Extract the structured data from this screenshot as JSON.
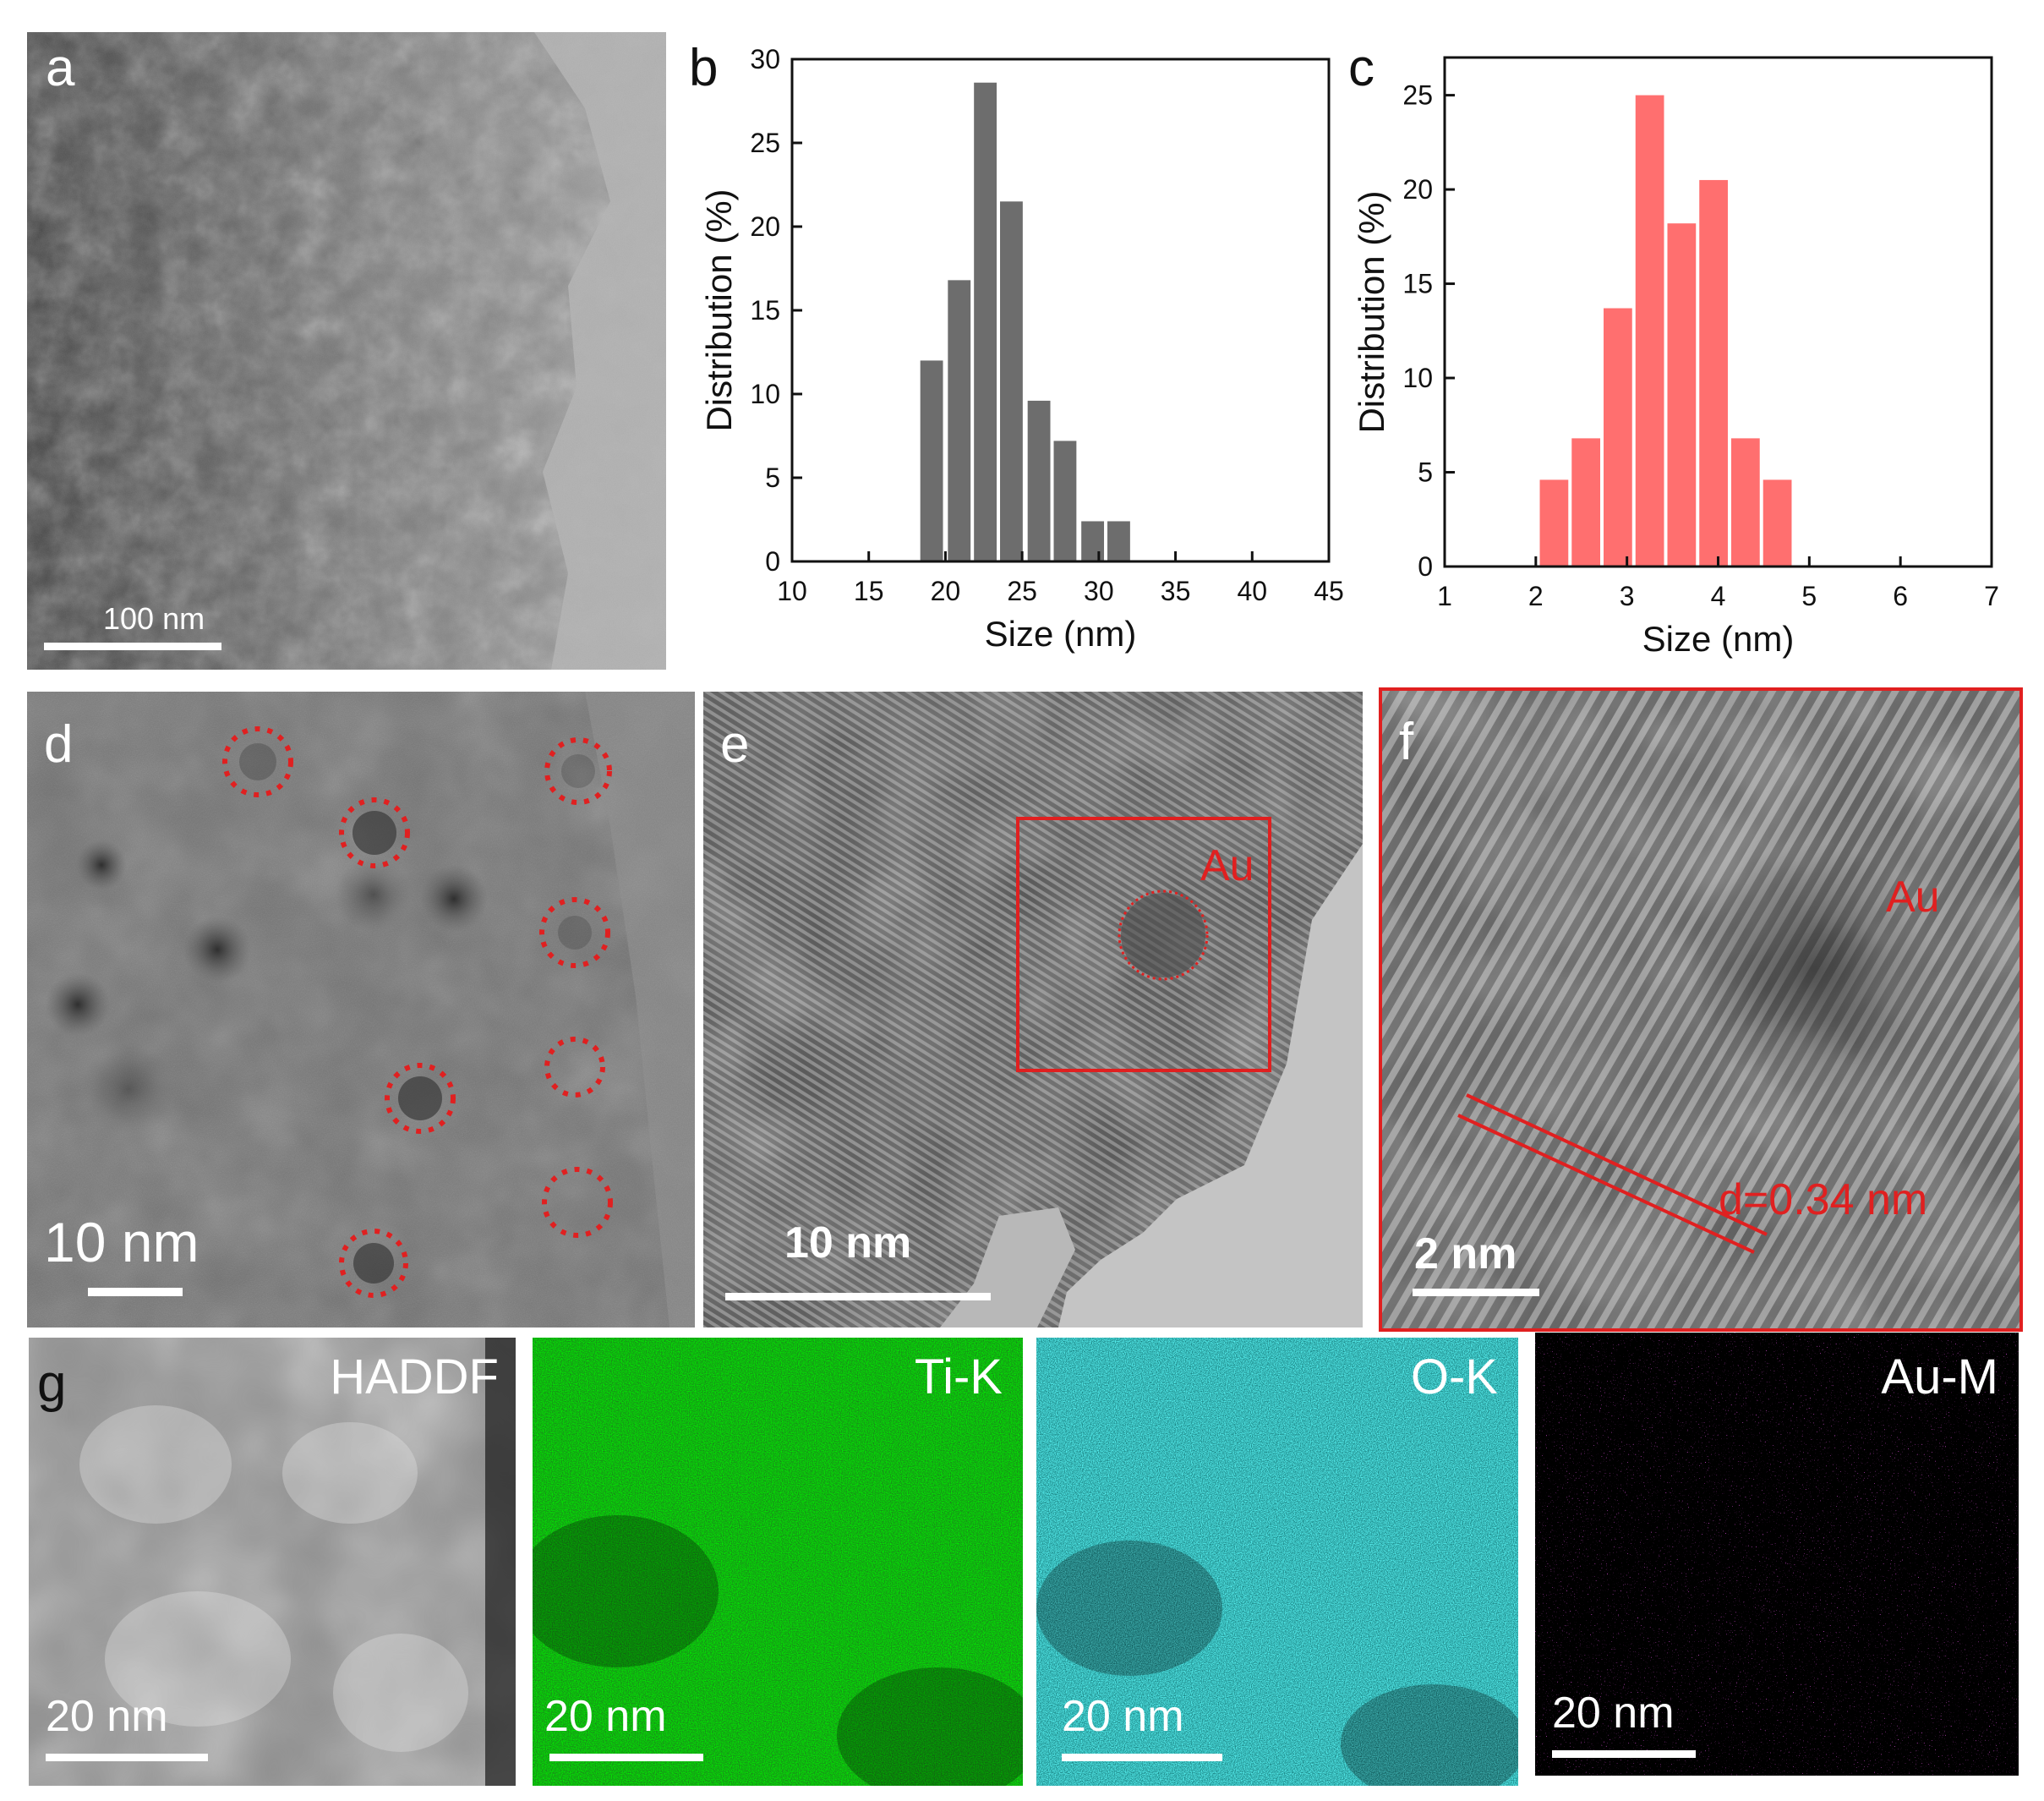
{
  "panel_a": {
    "letter": "a",
    "scale_label": "100 nm"
  },
  "panel_b": {
    "letter": "b"
  },
  "panel_c": {
    "letter": "c"
  },
  "panel_d": {
    "letter": "d",
    "scale_label": "10 nm"
  },
  "panel_e": {
    "letter": "e",
    "scale_label": "10 nm",
    "au_label": "Au"
  },
  "panel_f": {
    "letter": "f",
    "scale_label": "2 nm",
    "au_label": "Au",
    "d_label": "d=0.34 nm"
  },
  "panel_g": {
    "letter": "g",
    "maps": [
      {
        "label": "HADDF",
        "scale_label": "20 nm"
      },
      {
        "label": "Ti-K",
        "scale_label": "20 nm"
      },
      {
        "label": "O-K",
        "scale_label": "20 nm"
      },
      {
        "label": "Au-M",
        "scale_label": "20 nm"
      }
    ]
  },
  "colors": {
    "hist_b": "#6d6d6d",
    "hist_c": "#ff6f6f",
    "ti": "#1fbf1f",
    "o": "#19e0e0",
    "au": "#e01ee0",
    "red": "#e02020"
  },
  "chart_data": [
    {
      "type": "bar",
      "panel": "b",
      "xlabel": "Size (nm)",
      "ylabel": "Distribution (%)",
      "xlim": [
        10,
        45
      ],
      "ylim": [
        0,
        30
      ],
      "xticks": [
        10,
        15,
        20,
        25,
        30,
        35,
        40,
        45
      ],
      "yticks": [
        0,
        5,
        10,
        15,
        20,
        25,
        30
      ],
      "bin_width": 1.7,
      "x": [
        19.1,
        20.9,
        22.6,
        24.3,
        26.1,
        27.8,
        29.6,
        31.3,
        33.1
      ],
      "values": [
        12.0,
        16.8,
        28.6,
        21.5,
        9.6,
        7.2,
        2.4,
        2.4,
        0
      ],
      "grid": false,
      "legend": "none"
    },
    {
      "type": "bar",
      "panel": "c",
      "xlabel": "Size (nm)",
      "ylabel": "Distribution (%)",
      "xlim": [
        1,
        7
      ],
      "ylim": [
        0,
        27
      ],
      "xticks": [
        1,
        2,
        3,
        4,
        5,
        6,
        7
      ],
      "yticks": [
        0,
        5,
        10,
        15,
        20,
        25
      ],
      "bin_width": 0.35,
      "x": [
        2.2,
        2.55,
        2.9,
        3.25,
        3.6,
        3.95,
        4.3,
        4.65,
        5.0
      ],
      "values": [
        4.6,
        6.8,
        13.7,
        25.0,
        18.2,
        20.5,
        6.8,
        4.6,
        0
      ],
      "grid": false,
      "legend": "none"
    }
  ]
}
